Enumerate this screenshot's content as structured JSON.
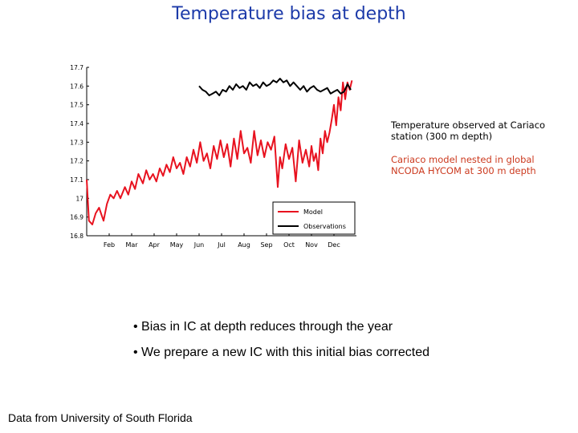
{
  "slide": {
    "title": "Temperature bias at depth",
    "note_observed": "Temperature observed at Cariaco station (300 m depth)",
    "note_model": "Cariaco model nested in global NCODA HYCOM at 300 m depth",
    "bullets": [
      "• Bias in IC at depth reduces through the year",
      "• We prepare a new IC with this initial bias corrected"
    ],
    "source": "Data from University of South Florida"
  },
  "chart_data": {
    "type": "line",
    "title": "",
    "xlabel": "",
    "ylabel": "",
    "x_tick_labels": [
      "Feb",
      "Mar",
      "Apr",
      "May",
      "Jun",
      "Jul",
      "Aug",
      "Sep",
      "Oct",
      "Nov",
      "Dec"
    ],
    "y_tick_labels": [
      "17.7",
      "17.6",
      "17.5",
      "17.4",
      "17.3",
      "17.2",
      "17.1",
      "17",
      "16.9",
      "16.8"
    ],
    "xlim": [
      1,
      13
    ],
    "ylim": [
      16.8,
      17.7
    ],
    "legend": {
      "placement": "bottom-right",
      "entries": [
        "Model",
        "Observations"
      ]
    },
    "series": [
      {
        "name": "Model",
        "color": "#e8121f",
        "x": [
          1.0,
          1.1,
          1.25,
          1.4,
          1.55,
          1.75,
          1.9,
          2.05,
          2.2,
          2.35,
          2.5,
          2.7,
          2.85,
          3.0,
          3.15,
          3.3,
          3.5,
          3.65,
          3.8,
          3.95,
          4.1,
          4.25,
          4.4,
          4.55,
          4.7,
          4.85,
          5.0,
          5.15,
          5.3,
          5.45,
          5.6,
          5.75,
          5.9,
          6.05,
          6.2,
          6.35,
          6.5,
          6.65,
          6.8,
          6.95,
          7.1,
          7.25,
          7.4,
          7.55,
          7.7,
          7.85,
          8.0,
          8.15,
          8.3,
          8.45,
          8.6,
          8.75,
          8.9,
          9.05,
          9.2,
          9.35,
          9.5,
          9.6,
          9.7,
          9.85,
          10.0,
          10.15,
          10.3,
          10.45,
          10.6,
          10.75,
          10.9,
          11.0,
          11.1,
          11.2,
          11.3,
          11.4,
          11.5,
          11.6,
          11.7,
          11.8,
          11.9,
          12.0,
          12.1,
          12.2,
          12.3,
          12.4,
          12.5,
          12.6,
          12.7,
          12.8
        ],
        "values": [
          17.1,
          16.88,
          16.86,
          16.92,
          16.95,
          16.88,
          16.97,
          17.02,
          17.0,
          17.04,
          17.0,
          17.06,
          17.02,
          17.09,
          17.05,
          17.13,
          17.08,
          17.15,
          17.1,
          17.13,
          17.09,
          17.16,
          17.12,
          17.18,
          17.14,
          17.22,
          17.16,
          17.19,
          17.13,
          17.22,
          17.17,
          17.26,
          17.19,
          17.3,
          17.2,
          17.24,
          17.16,
          17.28,
          17.21,
          17.31,
          17.22,
          17.29,
          17.17,
          17.32,
          17.21,
          17.36,
          17.24,
          17.27,
          17.19,
          17.36,
          17.23,
          17.31,
          17.22,
          17.3,
          17.26,
          17.33,
          17.06,
          17.22,
          17.16,
          17.29,
          17.21,
          17.27,
          17.09,
          17.31,
          17.19,
          17.26,
          17.17,
          17.28,
          17.2,
          17.24,
          17.15,
          17.32,
          17.24,
          17.36,
          17.3,
          17.35,
          17.42,
          17.5,
          17.39,
          17.54,
          17.47,
          17.62,
          17.53,
          17.62,
          17.58,
          17.63
        ]
      },
      {
        "name": "Observations",
        "color": "#000000",
        "x": [
          6.0,
          6.15,
          6.3,
          6.45,
          6.6,
          6.75,
          6.9,
          7.05,
          7.2,
          7.35,
          7.5,
          7.65,
          7.8,
          7.95,
          8.1,
          8.25,
          8.4,
          8.55,
          8.7,
          8.85,
          9.0,
          9.15,
          9.3,
          9.45,
          9.6,
          9.75,
          9.9,
          10.05,
          10.2,
          10.35,
          10.5,
          10.65,
          10.8,
          10.95,
          11.1,
          11.25,
          11.4,
          11.55,
          11.7,
          11.85,
          12.0,
          12.15,
          12.3,
          12.45,
          12.6,
          12.75
        ],
        "values": [
          17.6,
          17.58,
          17.57,
          17.55,
          17.56,
          17.57,
          17.55,
          17.58,
          17.57,
          17.6,
          17.58,
          17.61,
          17.59,
          17.6,
          17.58,
          17.62,
          17.6,
          17.61,
          17.59,
          17.62,
          17.6,
          17.61,
          17.63,
          17.62,
          17.64,
          17.62,
          17.63,
          17.6,
          17.62,
          17.6,
          17.58,
          17.6,
          17.57,
          17.59,
          17.6,
          17.58,
          17.57,
          17.58,
          17.59,
          17.56,
          17.57,
          17.58,
          17.56,
          17.57,
          17.61,
          17.58
        ]
      }
    ]
  }
}
